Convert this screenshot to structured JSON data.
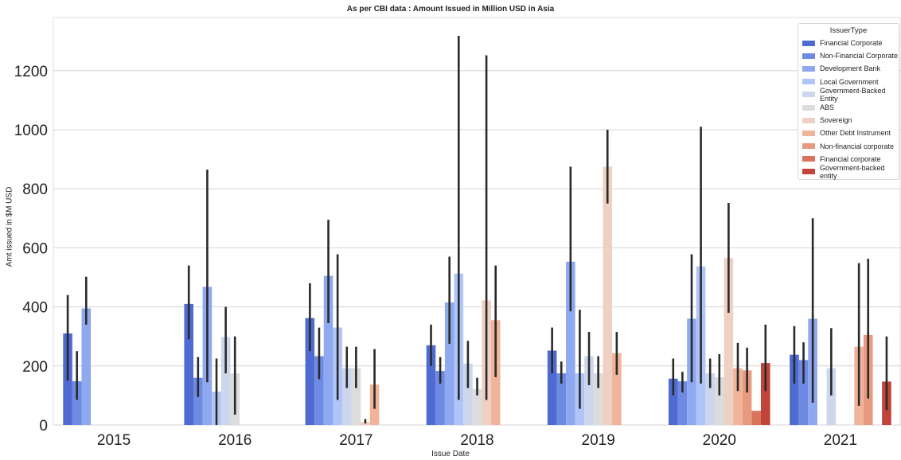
{
  "chart_data": {
    "type": "bar",
    "title": "As per CBI data : Amount Issued in Million USD in Asia",
    "xlabel": "Issue Date",
    "ylabel": "Amt issued in $M USD",
    "ylim": [
      0,
      1380
    ],
    "yticks": [
      0,
      200,
      400,
      600,
      800,
      1000,
      1200
    ],
    "grid": "horizontal",
    "categories": [
      "2015",
      "2016",
      "2017",
      "2018",
      "2019",
      "2020",
      "2021"
    ],
    "legend": {
      "title": "IssuerType",
      "placement": "top-right"
    },
    "series": [
      {
        "name": "Financial Corporate",
        "color": "#4f6bd2",
        "values": [
          310,
          410,
          362,
          270,
          252,
          157,
          238
        ],
        "err_low": [
          150,
          290,
          250,
          200,
          175,
          100,
          140
        ],
        "err_high": [
          440,
          540,
          480,
          340,
          330,
          225,
          335
        ]
      },
      {
        "name": "Non-Financial Corporate",
        "color": "#6e8ae3",
        "values": [
          148,
          160,
          233,
          183,
          175,
          148,
          220
        ],
        "err_low": [
          85,
          95,
          155,
          140,
          140,
          110,
          140
        ],
        "err_high": [
          250,
          230,
          330,
          230,
          215,
          180,
          280
        ]
      },
      {
        "name": "Development Bank",
        "color": "#8fa9f0",
        "values": [
          395,
          468,
          505,
          415,
          553,
          360,
          360
        ],
        "err_low": [
          340,
          145,
          345,
          275,
          385,
          145,
          75
        ],
        "err_high": [
          502,
          865,
          695,
          570,
          875,
          578,
          700
        ]
      },
      {
        "name": "Local Government",
        "color": "#afc4f7",
        "values": [
          null,
          113,
          330,
          513,
          175,
          537,
          null
        ],
        "err_low": [
          null,
          0,
          85,
          85,
          55,
          140,
          null
        ],
        "err_high": [
          null,
          225,
          578,
          1318,
          390,
          1010,
          null
        ]
      },
      {
        "name": "Government-Backed Entity",
        "color": "#ccd6ec",
        "values": [
          null,
          298,
          192,
          208,
          233,
          175,
          192
        ],
        "err_low": [
          null,
          175,
          125,
          125,
          135,
          125,
          100
        ],
        "err_high": [
          null,
          400,
          265,
          285,
          315,
          225,
          328
        ]
      },
      {
        "name": "ABS",
        "color": "#dcdcdc",
        "values": [
          null,
          175,
          192,
          122,
          175,
          162,
          null
        ],
        "err_low": [
          null,
          35,
          125,
          100,
          125,
          100,
          null
        ],
        "err_high": [
          null,
          300,
          265,
          160,
          233,
          240,
          null
        ]
      },
      {
        "name": "Sovereign",
        "color": "#eed1c2",
        "values": [
          null,
          null,
          10,
          422,
          875,
          565,
          null
        ],
        "err_low": [
          null,
          null,
          5,
          85,
          750,
          380,
          null
        ],
        "err_high": [
          null,
          null,
          20,
          1252,
          1000,
          752,
          null
        ]
      },
      {
        "name": "Other Debt Instrument",
        "color": "#f0b49a",
        "values": [
          null,
          null,
          137,
          355,
          243,
          192,
          265
        ],
        "err_low": [
          null,
          null,
          55,
          162,
          170,
          115,
          65
        ],
        "err_high": [
          null,
          null,
          257,
          540,
          315,
          278,
          548
        ]
      },
      {
        "name": "Non-financial corporate",
        "color": "#e89a7f",
        "values": [
          null,
          null,
          null,
          null,
          null,
          185,
          305
        ],
        "err_low": [
          null,
          null,
          null,
          null,
          null,
          110,
          90
        ],
        "err_high": [
          null,
          null,
          null,
          null,
          null,
          262,
          563
        ]
      },
      {
        "name": "Financial corporate",
        "color": "#d8735e",
        "values": [
          null,
          null,
          null,
          null,
          null,
          48,
          null
        ],
        "err_low": [
          null,
          null,
          null,
          null,
          null,
          null,
          null
        ],
        "err_high": [
          null,
          null,
          null,
          null,
          null,
          null,
          null
        ]
      },
      {
        "name": "Government-backed entity",
        "color": "#c0443a",
        "values": [
          null,
          null,
          null,
          null,
          null,
          210,
          147
        ],
        "err_low": [
          null,
          null,
          null,
          null,
          null,
          115,
          50
        ],
        "err_high": [
          null,
          null,
          null,
          null,
          null,
          340,
          300
        ]
      }
    ]
  }
}
